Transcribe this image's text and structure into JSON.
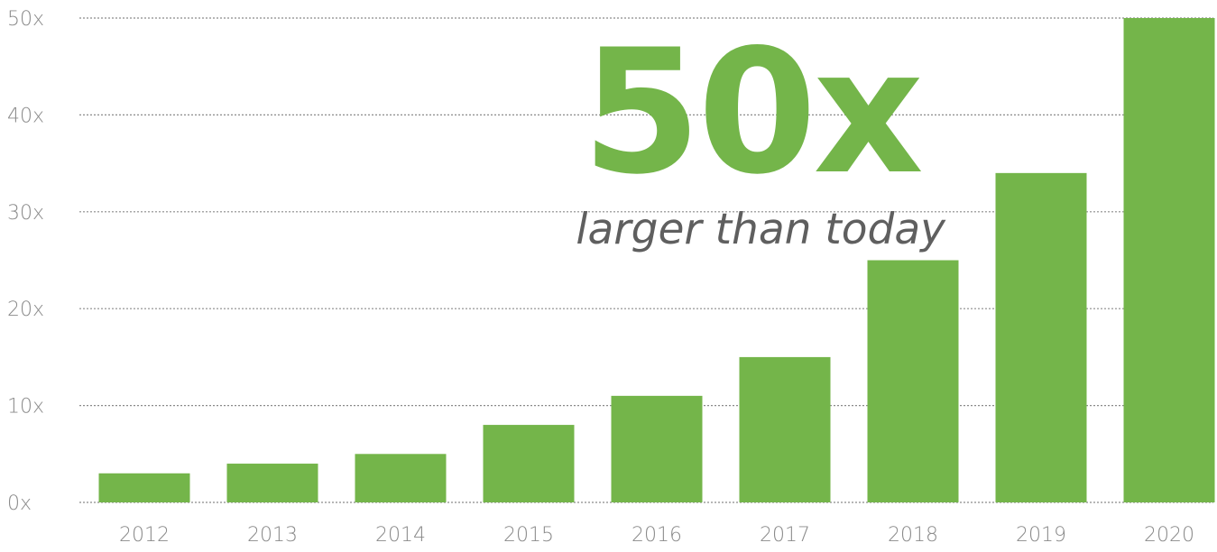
{
  "chart_data": {
    "type": "bar",
    "categories": [
      "2012",
      "2013",
      "2014",
      "2015",
      "2016",
      "2017",
      "2018",
      "2019",
      "2020"
    ],
    "values": [
      3,
      4,
      5,
      8,
      11,
      15,
      25,
      34,
      50
    ],
    "ylim": [
      0,
      50
    ],
    "y_ticks": [
      "0x",
      "10x",
      "20x",
      "30x",
      "40x",
      "50x"
    ],
    "y_tick_values": [
      0,
      10,
      20,
      30,
      40,
      50
    ],
    "grid": true,
    "bar_color": "#74b54a",
    "annotation": {
      "headline": "50x",
      "subline": "larger than today"
    }
  }
}
